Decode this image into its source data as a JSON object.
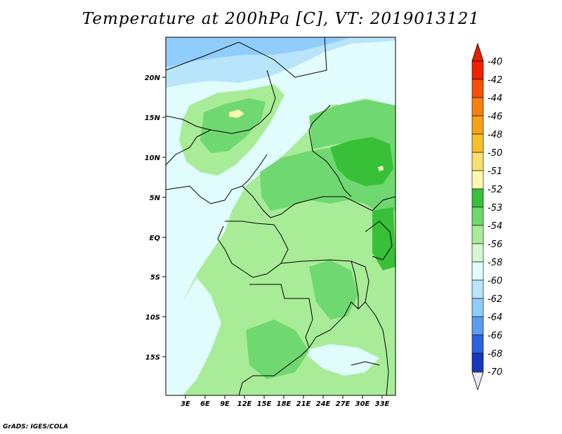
{
  "title": "Temperature at 200hPa [C], VT: 2019013121",
  "credit": "GrADS: IGES/COLA",
  "map": {
    "lat_labels": [
      "20N",
      "15N",
      "10N",
      "5N",
      "EQ",
      "5S",
      "10S",
      "15S"
    ],
    "lon_labels": [
      "3E",
      "6E",
      "9E",
      "12E",
      "15E",
      "18E",
      "21E",
      "24E",
      "27E",
      "30E",
      "33E"
    ]
  },
  "legend": {
    "levels": [
      "-40",
      "-42",
      "-44",
      "-46",
      "-48",
      "-50",
      "-51",
      "-52",
      "-53",
      "-54",
      "-56",
      "-58",
      "-60",
      "-62",
      "-64",
      "-66",
      "-68",
      "-70"
    ],
    "colors": [
      "#f02000",
      "#f85008",
      "#f88010",
      "#f8a018",
      "#f8c028",
      "#f8e070",
      "#fcf8b0",
      "#38c038",
      "#70d870",
      "#a8ec98",
      "#d4f8d0",
      "#e0fcfc",
      "#b8e4fc",
      "#90ccfc",
      "#5c9cf0",
      "#2c64e0",
      "#1438c0",
      "#081470"
    ],
    "top_cap_color": "#e82000",
    "bottom_cap_color": "#e8e8f8"
  }
}
